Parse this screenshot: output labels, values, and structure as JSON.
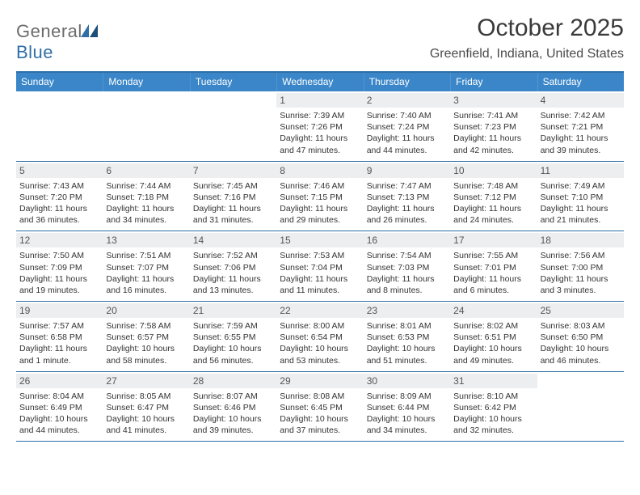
{
  "logo": {
    "word1": "General",
    "word2": "Blue"
  },
  "title": "October 2025",
  "location": "Greenfield, Indiana, United States",
  "weekdays": [
    "Sunday",
    "Monday",
    "Tuesday",
    "Wednesday",
    "Thursday",
    "Friday",
    "Saturday"
  ],
  "colors": {
    "header_bg": "#3a86c8",
    "header_text": "#ffffff",
    "rule": "#2f6fa8",
    "daynum_bg": "#eceeef",
    "text": "#333333",
    "logo_gray": "#6b6b6b",
    "logo_blue": "#2f6fa8"
  },
  "typography": {
    "title_fontsize": 30,
    "location_fontsize": 16,
    "weekday_fontsize": 12,
    "body_fontsize": 10.5
  },
  "calendar": {
    "type": "table",
    "first_weekday": "Sunday",
    "month_start_weekday_index": 3,
    "days": [
      {
        "n": 1,
        "sunrise": "7:39 AM",
        "sunset": "7:26 PM",
        "daylight": "11 hours and 47 minutes."
      },
      {
        "n": 2,
        "sunrise": "7:40 AM",
        "sunset": "7:24 PM",
        "daylight": "11 hours and 44 minutes."
      },
      {
        "n": 3,
        "sunrise": "7:41 AM",
        "sunset": "7:23 PM",
        "daylight": "11 hours and 42 minutes."
      },
      {
        "n": 4,
        "sunrise": "7:42 AM",
        "sunset": "7:21 PM",
        "daylight": "11 hours and 39 minutes."
      },
      {
        "n": 5,
        "sunrise": "7:43 AM",
        "sunset": "7:20 PM",
        "daylight": "11 hours and 36 minutes."
      },
      {
        "n": 6,
        "sunrise": "7:44 AM",
        "sunset": "7:18 PM",
        "daylight": "11 hours and 34 minutes."
      },
      {
        "n": 7,
        "sunrise": "7:45 AM",
        "sunset": "7:16 PM",
        "daylight": "11 hours and 31 minutes."
      },
      {
        "n": 8,
        "sunrise": "7:46 AM",
        "sunset": "7:15 PM",
        "daylight": "11 hours and 29 minutes."
      },
      {
        "n": 9,
        "sunrise": "7:47 AM",
        "sunset": "7:13 PM",
        "daylight": "11 hours and 26 minutes."
      },
      {
        "n": 10,
        "sunrise": "7:48 AM",
        "sunset": "7:12 PM",
        "daylight": "11 hours and 24 minutes."
      },
      {
        "n": 11,
        "sunrise": "7:49 AM",
        "sunset": "7:10 PM",
        "daylight": "11 hours and 21 minutes."
      },
      {
        "n": 12,
        "sunrise": "7:50 AM",
        "sunset": "7:09 PM",
        "daylight": "11 hours and 19 minutes."
      },
      {
        "n": 13,
        "sunrise": "7:51 AM",
        "sunset": "7:07 PM",
        "daylight": "11 hours and 16 minutes."
      },
      {
        "n": 14,
        "sunrise": "7:52 AM",
        "sunset": "7:06 PM",
        "daylight": "11 hours and 13 minutes."
      },
      {
        "n": 15,
        "sunrise": "7:53 AM",
        "sunset": "7:04 PM",
        "daylight": "11 hours and 11 minutes."
      },
      {
        "n": 16,
        "sunrise": "7:54 AM",
        "sunset": "7:03 PM",
        "daylight": "11 hours and 8 minutes."
      },
      {
        "n": 17,
        "sunrise": "7:55 AM",
        "sunset": "7:01 PM",
        "daylight": "11 hours and 6 minutes."
      },
      {
        "n": 18,
        "sunrise": "7:56 AM",
        "sunset": "7:00 PM",
        "daylight": "11 hours and 3 minutes."
      },
      {
        "n": 19,
        "sunrise": "7:57 AM",
        "sunset": "6:58 PM",
        "daylight": "11 hours and 1 minute."
      },
      {
        "n": 20,
        "sunrise": "7:58 AM",
        "sunset": "6:57 PM",
        "daylight": "10 hours and 58 minutes."
      },
      {
        "n": 21,
        "sunrise": "7:59 AM",
        "sunset": "6:55 PM",
        "daylight": "10 hours and 56 minutes."
      },
      {
        "n": 22,
        "sunrise": "8:00 AM",
        "sunset": "6:54 PM",
        "daylight": "10 hours and 53 minutes."
      },
      {
        "n": 23,
        "sunrise": "8:01 AM",
        "sunset": "6:53 PM",
        "daylight": "10 hours and 51 minutes."
      },
      {
        "n": 24,
        "sunrise": "8:02 AM",
        "sunset": "6:51 PM",
        "daylight": "10 hours and 49 minutes."
      },
      {
        "n": 25,
        "sunrise": "8:03 AM",
        "sunset": "6:50 PM",
        "daylight": "10 hours and 46 minutes."
      },
      {
        "n": 26,
        "sunrise": "8:04 AM",
        "sunset": "6:49 PM",
        "daylight": "10 hours and 44 minutes."
      },
      {
        "n": 27,
        "sunrise": "8:05 AM",
        "sunset": "6:47 PM",
        "daylight": "10 hours and 41 minutes."
      },
      {
        "n": 28,
        "sunrise": "8:07 AM",
        "sunset": "6:46 PM",
        "daylight": "10 hours and 39 minutes."
      },
      {
        "n": 29,
        "sunrise": "8:08 AM",
        "sunset": "6:45 PM",
        "daylight": "10 hours and 37 minutes."
      },
      {
        "n": 30,
        "sunrise": "8:09 AM",
        "sunset": "6:44 PM",
        "daylight": "10 hours and 34 minutes."
      },
      {
        "n": 31,
        "sunrise": "8:10 AM",
        "sunset": "6:42 PM",
        "daylight": "10 hours and 32 minutes."
      }
    ]
  },
  "labels": {
    "sunrise_prefix": "Sunrise: ",
    "sunset_prefix": "Sunset: ",
    "daylight_prefix": "Daylight: "
  }
}
